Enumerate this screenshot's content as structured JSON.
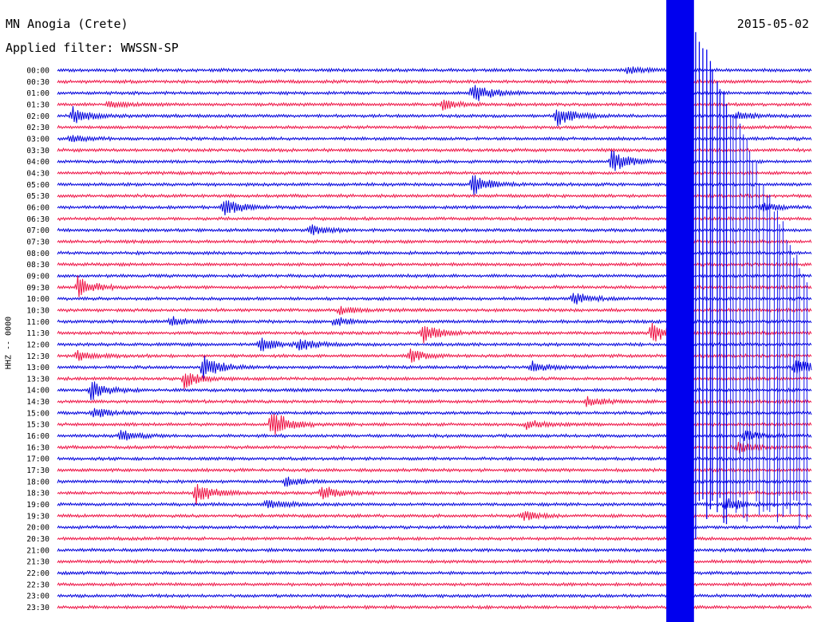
{
  "header": {
    "station": "MN Anogia (Crete)",
    "filter": "Applied filter: WWSSN-SP",
    "date": "2015-05-02"
  },
  "chart_data": {
    "type": "line",
    "title": "MN Anogia (Crete)",
    "ylabel": "HHZ -- 0000",
    "trace_colors": [
      "#0000dd",
      "#ee1144"
    ],
    "rows": [
      "00:00",
      "00:30",
      "01:00",
      "01:30",
      "02:00",
      "02:30",
      "03:00",
      "03:30",
      "04:00",
      "04:30",
      "05:00",
      "05:30",
      "06:00",
      "06:30",
      "07:00",
      "07:30",
      "08:00",
      "08:30",
      "09:00",
      "09:30",
      "10:00",
      "10:30",
      "11:00",
      "11:30",
      "12:00",
      "12:30",
      "13:00",
      "13:30",
      "14:00",
      "14:30",
      "15:00",
      "15:30",
      "16:00",
      "16:30",
      "17:00",
      "17:30",
      "18:00",
      "18:30",
      "19:00",
      "19:30",
      "20:00",
      "20:30",
      "21:00",
      "21:30",
      "22:00",
      "22:30",
      "23:00",
      "23:30"
    ],
    "row_minutes": 30,
    "events": [
      {
        "row": 0,
        "minute": 22.6,
        "amp": 5
      },
      {
        "row": 2,
        "minute": 16.5,
        "amp": 15
      },
      {
        "row": 3,
        "minute": 2.0,
        "amp": 5
      },
      {
        "row": 3,
        "minute": 15.3,
        "amp": 6
      },
      {
        "row": 4,
        "minute": 0.6,
        "amp": 12
      },
      {
        "row": 4,
        "minute": 19.8,
        "amp": 14
      },
      {
        "row": 4,
        "minute": 27.0,
        "amp": 6
      },
      {
        "row": 6,
        "minute": 0.5,
        "amp": 4
      },
      {
        "row": 8,
        "minute": 22.0,
        "amp": 16
      },
      {
        "row": 10,
        "minute": 16.5,
        "amp": 14
      },
      {
        "row": 12,
        "minute": 6.6,
        "amp": 12
      },
      {
        "row": 12,
        "minute": 28.0,
        "amp": 5
      },
      {
        "row": 14,
        "minute": 10.0,
        "amp": 7
      },
      {
        "row": 19,
        "minute": 0.8,
        "amp": 14
      },
      {
        "row": 20,
        "minute": 20.5,
        "amp": 8
      },
      {
        "row": 21,
        "minute": 11.2,
        "amp": 5
      },
      {
        "row": 22,
        "minute": 4.5,
        "amp": 6
      },
      {
        "row": 22,
        "minute": 11.0,
        "amp": 6
      },
      {
        "row": 23,
        "minute": 14.5,
        "amp": 14
      },
      {
        "row": 23,
        "minute": 23.6,
        "amp": 14
      },
      {
        "row": 24,
        "minute": 8.0,
        "amp": 10
      },
      {
        "row": 24,
        "minute": 9.6,
        "amp": 8
      },
      {
        "row": 25,
        "minute": 0.8,
        "amp": 6
      },
      {
        "row": 25,
        "minute": 14.0,
        "amp": 8
      },
      {
        "row": 26,
        "minute": 5.8,
        "amp": 16
      },
      {
        "row": 26,
        "minute": 18.8,
        "amp": 8
      },
      {
        "row": 26,
        "minute": 29.3,
        "amp": 14
      },
      {
        "row": 27,
        "minute": 5.0,
        "amp": 12
      },
      {
        "row": 28,
        "minute": 1.3,
        "amp": 14
      },
      {
        "row": 29,
        "minute": 21.0,
        "amp": 6
      },
      {
        "row": 30,
        "minute": 1.4,
        "amp": 8
      },
      {
        "row": 31,
        "minute": 8.5,
        "amp": 20
      },
      {
        "row": 31,
        "minute": 18.6,
        "amp": 6
      },
      {
        "row": 32,
        "minute": 2.5,
        "amp": 8
      },
      {
        "row": 32,
        "minute": 27.3,
        "amp": 6
      },
      {
        "row": 33,
        "minute": 27.0,
        "amp": 8
      },
      {
        "row": 36,
        "minute": 9.0,
        "amp": 6
      },
      {
        "row": 37,
        "minute": 5.5,
        "amp": 16
      },
      {
        "row": 37,
        "minute": 10.5,
        "amp": 10
      },
      {
        "row": 38,
        "minute": 8.3,
        "amp": 8
      },
      {
        "row": 38,
        "minute": 26.5,
        "amp": 10
      },
      {
        "row": 39,
        "minute": 18.5,
        "amp": 6
      }
    ],
    "mainshock": {
      "minute_start": 24.2,
      "minute_end": 25.3,
      "start_row": 0
    }
  }
}
